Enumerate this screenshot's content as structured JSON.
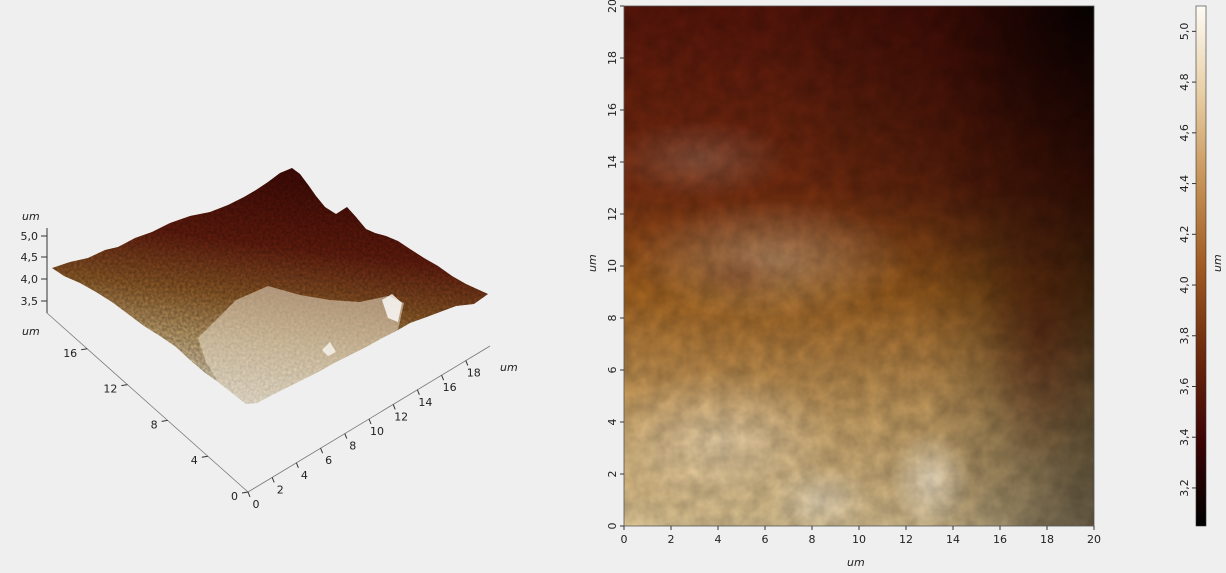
{
  "chart_data": [
    {
      "type": "surface3d",
      "z_unit": "um",
      "z_ticks": [
        "5,0",
        "4,5",
        "4,0",
        "3,5"
      ],
      "x_unit": "um",
      "x_ticks": [
        "0",
        "2",
        "4",
        "6",
        "8",
        "10",
        "12",
        "14",
        "16",
        "18"
      ],
      "y_unit": "um",
      "y_ticks": [
        "0",
        "4",
        "8",
        "12",
        "16"
      ],
      "colors": {
        "low": "#fbf6e4",
        "mid": "#b07a32",
        "high": "#4a0d07"
      }
    },
    {
      "type": "heatmap",
      "x_unit": "um",
      "y_unit": "um",
      "x_ticks": [
        "0",
        "2",
        "4",
        "6",
        "8",
        "10",
        "12",
        "14",
        "16",
        "18",
        "20"
      ],
      "y_ticks": [
        "0",
        "2",
        "4",
        "6",
        "8",
        "10",
        "12",
        "14",
        "16",
        "18",
        "20"
      ],
      "xlim": [
        0,
        20
      ],
      "ylim": [
        0,
        20
      ]
    },
    {
      "type": "colorbar",
      "unit": "um",
      "ticks": [
        "3,2",
        "3,4",
        "3,6",
        "3,8",
        "4,0",
        "4,2",
        "4,4",
        "4,6",
        "4,8",
        "5,0"
      ],
      "range": [
        3.05,
        5.1
      ],
      "colors": [
        "#000000",
        "#3d0505",
        "#6d2a0e",
        "#a05a22",
        "#c79458",
        "#e8cfa6",
        "#fdfbf4"
      ]
    }
  ]
}
